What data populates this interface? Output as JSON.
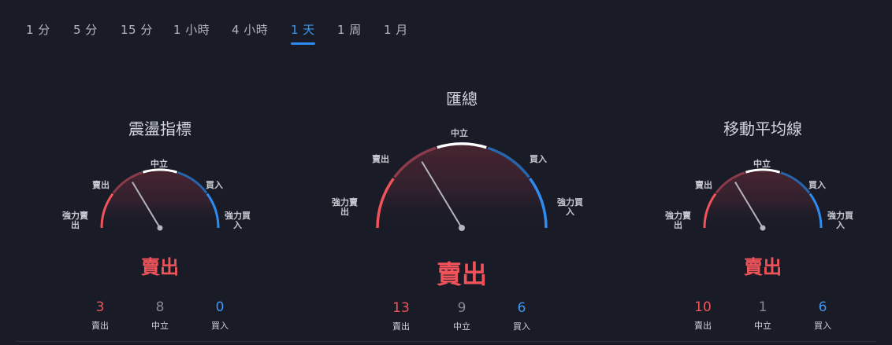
{
  "tabs": [
    {
      "label": "1 分",
      "active": false
    },
    {
      "label": "5 分",
      "active": false
    },
    {
      "label": "15 分",
      "active": false
    },
    {
      "label": "1 小時",
      "active": false
    },
    {
      "label": "4 小時",
      "active": false
    },
    {
      "label": "1 天",
      "active": true
    },
    {
      "label": "1 周",
      "active": false
    },
    {
      "label": "1 月",
      "active": false
    }
  ],
  "labels": {
    "strong_sell": "強力賣出",
    "sell": "賣出",
    "neutral": "中立",
    "buy": "買入",
    "strong_buy": "強力買入"
  },
  "gauges": {
    "oscillators": {
      "title": "震盪指標",
      "signal": "賣出",
      "counts": {
        "sell": "3",
        "neutral": "8",
        "buy": "0"
      }
    },
    "summary": {
      "title": "匯總",
      "signal": "賣出",
      "counts": {
        "sell": "13",
        "neutral": "9",
        "buy": "6"
      }
    },
    "moving_averages": {
      "title": "移動平均線",
      "signal": "賣出",
      "counts": {
        "sell": "10",
        "neutral": "1",
        "buy": "6"
      }
    }
  },
  "colors": {
    "strong_sell": "#f0535a",
    "sell": "#8c3b4a",
    "neutral": "#ffffff",
    "buy": "#2766ad",
    "strong_buy": "#2e8cf0",
    "needle": "#b2b5be"
  }
}
